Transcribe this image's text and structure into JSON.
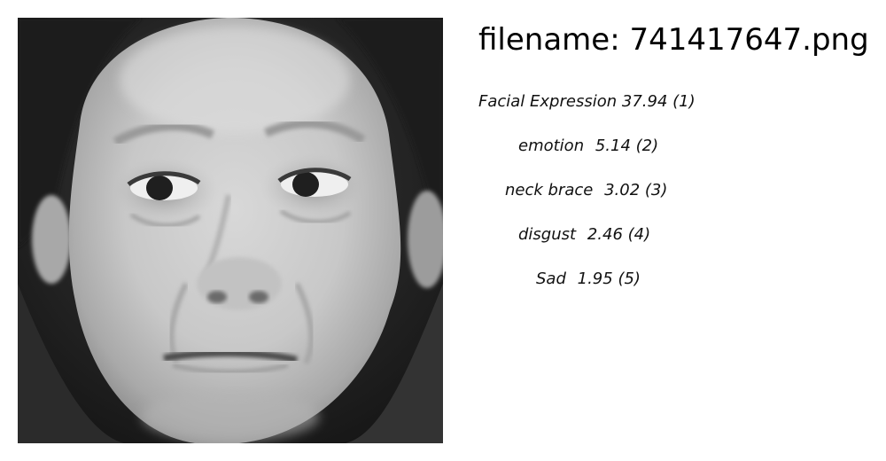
{
  "filename_label": "filename: 741417647.png",
  "predictions": [
    {
      "label": "Facial Expression",
      "score": "37.94",
      "rank": "(1)"
    },
    {
      "label": "emotion",
      "score": "5.14",
      "rank": "(2)"
    },
    {
      "label": "neck brace",
      "score": "3.02",
      "rank": "(3)"
    },
    {
      "label": "disgust",
      "score": "2.46",
      "rank": "(4)"
    },
    {
      "label": "Sad",
      "score": "1.95",
      "rank": "(5)"
    }
  ],
  "colors": {
    "background": "#ffffff",
    "text": "#000000",
    "face_dark": "#2a2a2a",
    "face_skin": "#cfcfcf"
  }
}
